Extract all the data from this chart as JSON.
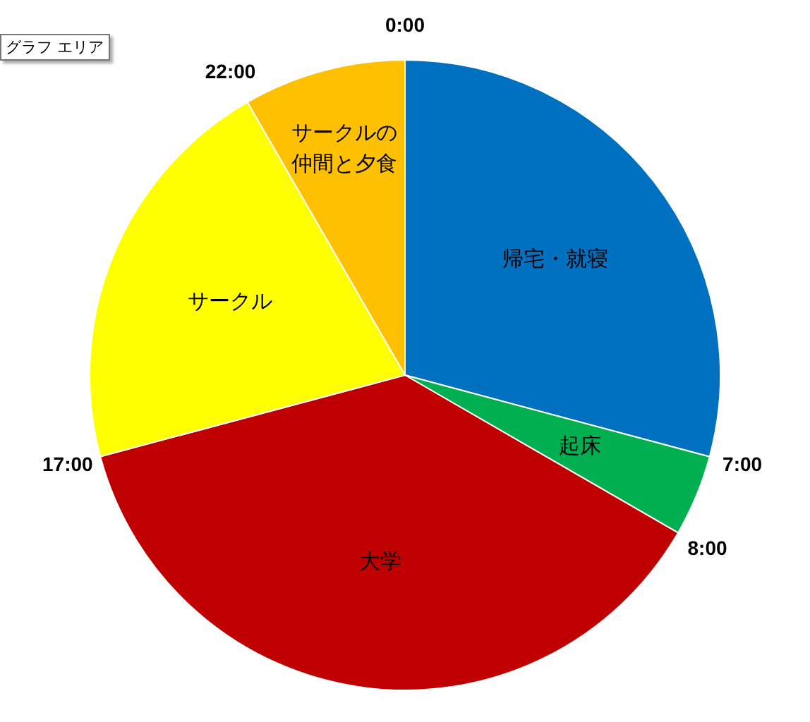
{
  "chart_data": {
    "type": "pie",
    "categories": [
      "帰宅・就寝",
      "起床",
      "大学",
      "サークル",
      "サークルの仲間と夕食"
    ],
    "values": [
      29.17,
      4.17,
      37.5,
      20.83,
      8.33
    ],
    "colors": [
      "#0070c0",
      "#00b050",
      "#c00000",
      "#ffff00",
      "#ffc000"
    ],
    "legend": false,
    "annotations": [
      "グラフ エリア",
      "0:00",
      "7:00",
      "8:00",
      "17:00",
      "22:00"
    ]
  }
}
